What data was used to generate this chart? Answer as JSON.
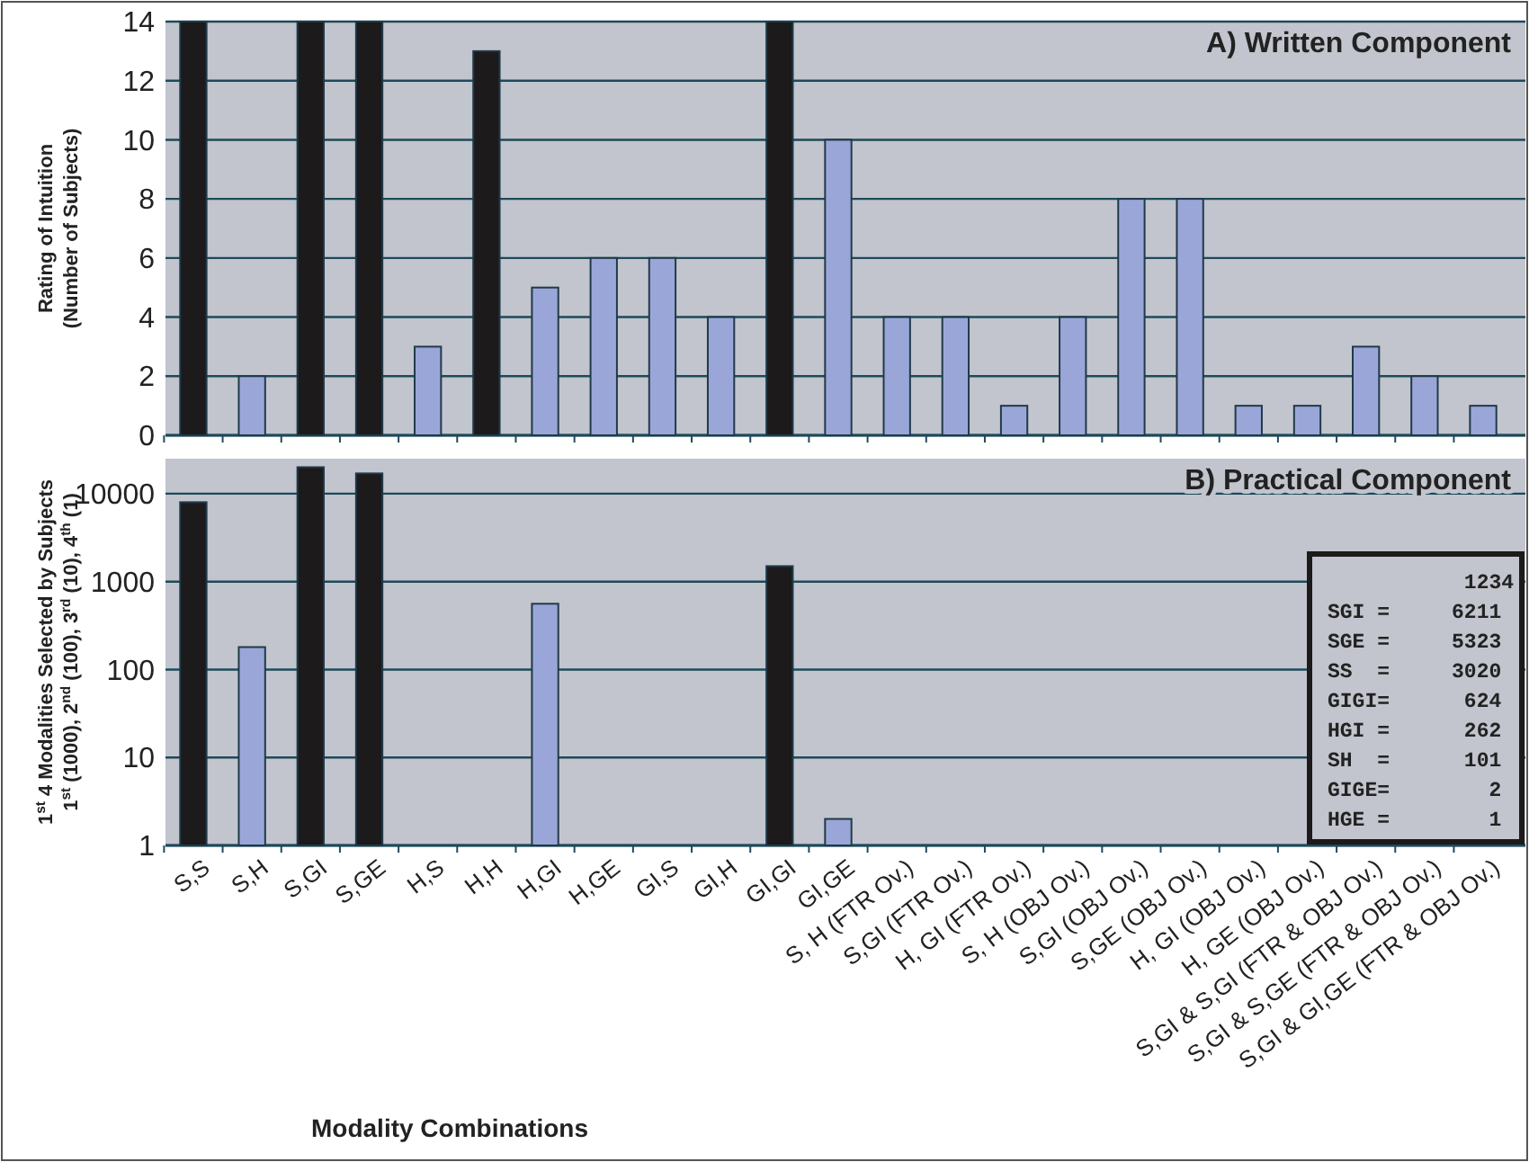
{
  "chart_data": [
    {
      "type": "bar",
      "title": "A) Written Component",
      "ylabel": "Rating of Intuition\n(Number of Subjects)",
      "categories": [
        null,
        null,
        null,
        null,
        null,
        null,
        null,
        null,
        null,
        null,
        null,
        null,
        null,
        null,
        null,
        null,
        null,
        null,
        null,
        null,
        null,
        null,
        null
      ],
      "values": [
        14,
        2,
        14,
        14,
        3,
        13,
        5,
        6,
        6,
        4,
        14,
        10,
        4,
        4,
        1,
        4,
        8,
        8,
        1,
        1,
        3,
        2,
        1
      ],
      "colors": [
        "#1c1a1b",
        "#9ba6d8",
        "#1c1a1b",
        "#1c1a1b",
        "#9ba6d8",
        "#1c1a1b",
        "#9ba6d8",
        "#9ba6d8",
        "#9ba6d8",
        "#9ba6d8",
        "#1c1a1b",
        "#9ba6d8",
        "#9ba6d8",
        "#9ba6d8",
        "#9ba6d8",
        "#9ba6d8",
        "#9ba6d8",
        "#9ba6d8",
        "#9ba6d8",
        "#9ba6d8",
        "#9ba6d8",
        "#9ba6d8",
        "#9ba6d8"
      ],
      "ylim": [
        0,
        14
      ],
      "yticks": [
        0,
        2,
        4,
        6,
        8,
        10,
        12,
        14
      ],
      "grid": "y",
      "tick_labels": "y"
    },
    {
      "type": "bar",
      "title": "B) Practical Component",
      "xlabel": "Modality Combinations",
      "ylabel": "1$^{st}$ 4 Modalities Selected by Subjects\n1$^{st}$ (1000), 2$^{nd}$ (100), 3$^{rd}$ (10), 4$^{th}$ (1)",
      "categories": [
        "S,S",
        "S,H",
        "S,GI",
        "S,GE",
        "H,S",
        "H,H",
        "H,GI",
        "H,GE",
        "GI,S",
        "GI,H",
        "GI,GI",
        "GI,GE",
        "S, H (FTR Ov.)",
        "S,GI (FTR Ov.)",
        "H, GI (FTR Ov.)",
        "S, H (OBJ Ov.)",
        "S,GI (OBJ Ov.)",
        "S,GE (OBJ Ov.)",
        "H, GI (OBJ Ov.)",
        "H, GE (OBJ Ov.)",
        "S,GI & S,GI (FTR & OBJ Ov.)",
        "S,GI & S,GE (FTR & OBJ Ov.)",
        "S,GI & GI,GE (FTR & OBJ Ov.)"
      ],
      "values": [
        8000,
        180,
        20000,
        17000,
        null,
        null,
        560,
        null,
        null,
        null,
        1500,
        2,
        null,
        null,
        null,
        null,
        null,
        null,
        null,
        null,
        null,
        null,
        null
      ],
      "colors": [
        "#1c1a1b",
        "#9ba6d8",
        "#1c1a1b",
        "#1c1a1b",
        null,
        null,
        "#9ba6d8",
        null,
        null,
        null,
        "#1c1a1b",
        "#9ba6d8",
        null,
        null,
        null,
        null,
        null,
        null,
        null,
        null,
        null,
        null,
        null
      ],
      "ylim": [
        1,
        25000
      ],
      "yticks": [
        1,
        10,
        100,
        1000,
        10000
      ],
      "log": true,
      "grid": "y",
      "annotations": [
        "           1234",
        "SGI =     6211",
        "SGE =     5323",
        "SS  =     3020",
        "GIGI=      624",
        "HGI =      262",
        "SH  =      101",
        "GIGE=        2",
        "HGE =        1"
      ]
    }
  ]
}
